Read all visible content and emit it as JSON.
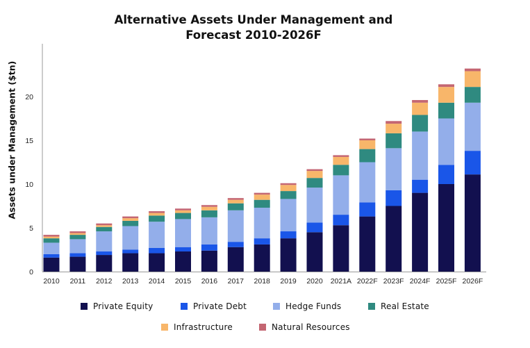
{
  "chart_data": {
    "type": "bar",
    "stacked": true,
    "title_lines": [
      "Alternative Assets Under Management and",
      "Forecast 2010-2026F"
    ],
    "xlabel": "",
    "ylabel": "Assets under Management ($tn)",
    "ylim": [
      0,
      25
    ],
    "yticks": [
      0,
      5,
      10,
      15,
      20
    ],
    "grid": false,
    "legend_position": "bottom",
    "categories": [
      "2010",
      "2011",
      "2012",
      "2013",
      "2014",
      "2015",
      "2016",
      "2017",
      "2018",
      "2019",
      "2020",
      "2021A",
      "2022F",
      "2023F",
      "2024F",
      "2025F",
      "2026F"
    ],
    "series": [
      {
        "name": "Private Equity",
        "color": "#12104f",
        "values": [
          1.6,
          1.7,
          1.9,
          2.1,
          2.1,
          2.3,
          2.4,
          2.8,
          3.1,
          3.8,
          4.5,
          5.3,
          6.3,
          7.5,
          9.0,
          10.0,
          11.1
        ]
      },
      {
        "name": "Private Debt",
        "color": "#1a56e8",
        "values": [
          0.4,
          0.4,
          0.4,
          0.4,
          0.6,
          0.5,
          0.7,
          0.6,
          0.7,
          0.8,
          1.1,
          1.2,
          1.6,
          1.8,
          1.5,
          2.2,
          2.7
        ]
      },
      {
        "name": "Hedge Funds",
        "color": "#93aeea",
        "values": [
          1.3,
          1.6,
          2.3,
          2.7,
          3.0,
          3.2,
          3.1,
          3.6,
          3.5,
          3.7,
          4.0,
          4.5,
          4.6,
          4.8,
          5.5,
          5.3,
          5.5
        ]
      },
      {
        "name": "Real Estate",
        "color": "#2f8a80",
        "values": [
          0.5,
          0.5,
          0.5,
          0.6,
          0.7,
          0.7,
          0.8,
          0.8,
          0.9,
          0.9,
          1.1,
          1.2,
          1.5,
          1.7,
          1.9,
          1.8,
          1.8
        ]
      },
      {
        "name": "Infrastructure",
        "color": "#f8b66a",
        "values": [
          0.2,
          0.2,
          0.2,
          0.3,
          0.3,
          0.3,
          0.4,
          0.4,
          0.6,
          0.7,
          0.8,
          0.9,
          1.0,
          1.1,
          1.4,
          1.8,
          1.8
        ]
      },
      {
        "name": "Natural Resources",
        "color": "#c46672",
        "values": [
          0.2,
          0.2,
          0.2,
          0.2,
          0.2,
          0.2,
          0.2,
          0.2,
          0.2,
          0.2,
          0.2,
          0.2,
          0.2,
          0.3,
          0.3,
          0.3,
          0.3
        ]
      }
    ]
  }
}
